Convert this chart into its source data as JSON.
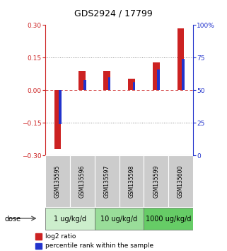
{
  "title": "GDS2924 / 17799",
  "samples": [
    "GSM135595",
    "GSM135596",
    "GSM135597",
    "GSM135598",
    "GSM135599",
    "GSM135600"
  ],
  "log2_ratio": [
    -0.27,
    0.09,
    0.09,
    0.055,
    0.13,
    0.285
  ],
  "percentile_rank": [
    24,
    58,
    60,
    56,
    66,
    74
  ],
  "ylim_left": [
    -0.3,
    0.3
  ],
  "ylim_right": [
    0,
    100
  ],
  "yticks_left": [
    -0.3,
    -0.15,
    0,
    0.15,
    0.3
  ],
  "yticks_right": [
    0,
    25,
    50,
    75,
    100
  ],
  "hlines": [
    -0.15,
    0.0,
    0.15
  ],
  "bar_color_red": "#cc2222",
  "bar_color_blue": "#2233cc",
  "dose_groups": [
    {
      "label": "1 ug/kg/d",
      "indices": [
        0,
        1
      ],
      "color": "#cceecc"
    },
    {
      "label": "10 ug/kg/d",
      "indices": [
        2,
        3
      ],
      "color": "#99dd99"
    },
    {
      "label": "1000 ug/kg/d",
      "indices": [
        4,
        5
      ],
      "color": "#66cc66"
    }
  ],
  "dose_label": "dose",
  "legend_red": "log2 ratio",
  "legend_blue": "percentile rank within the sample",
  "title_fontsize": 9,
  "tick_fontsize": 6.5,
  "sample_fontsize": 5.5,
  "dose_fontsize": 7,
  "legend_fontsize": 6.5
}
